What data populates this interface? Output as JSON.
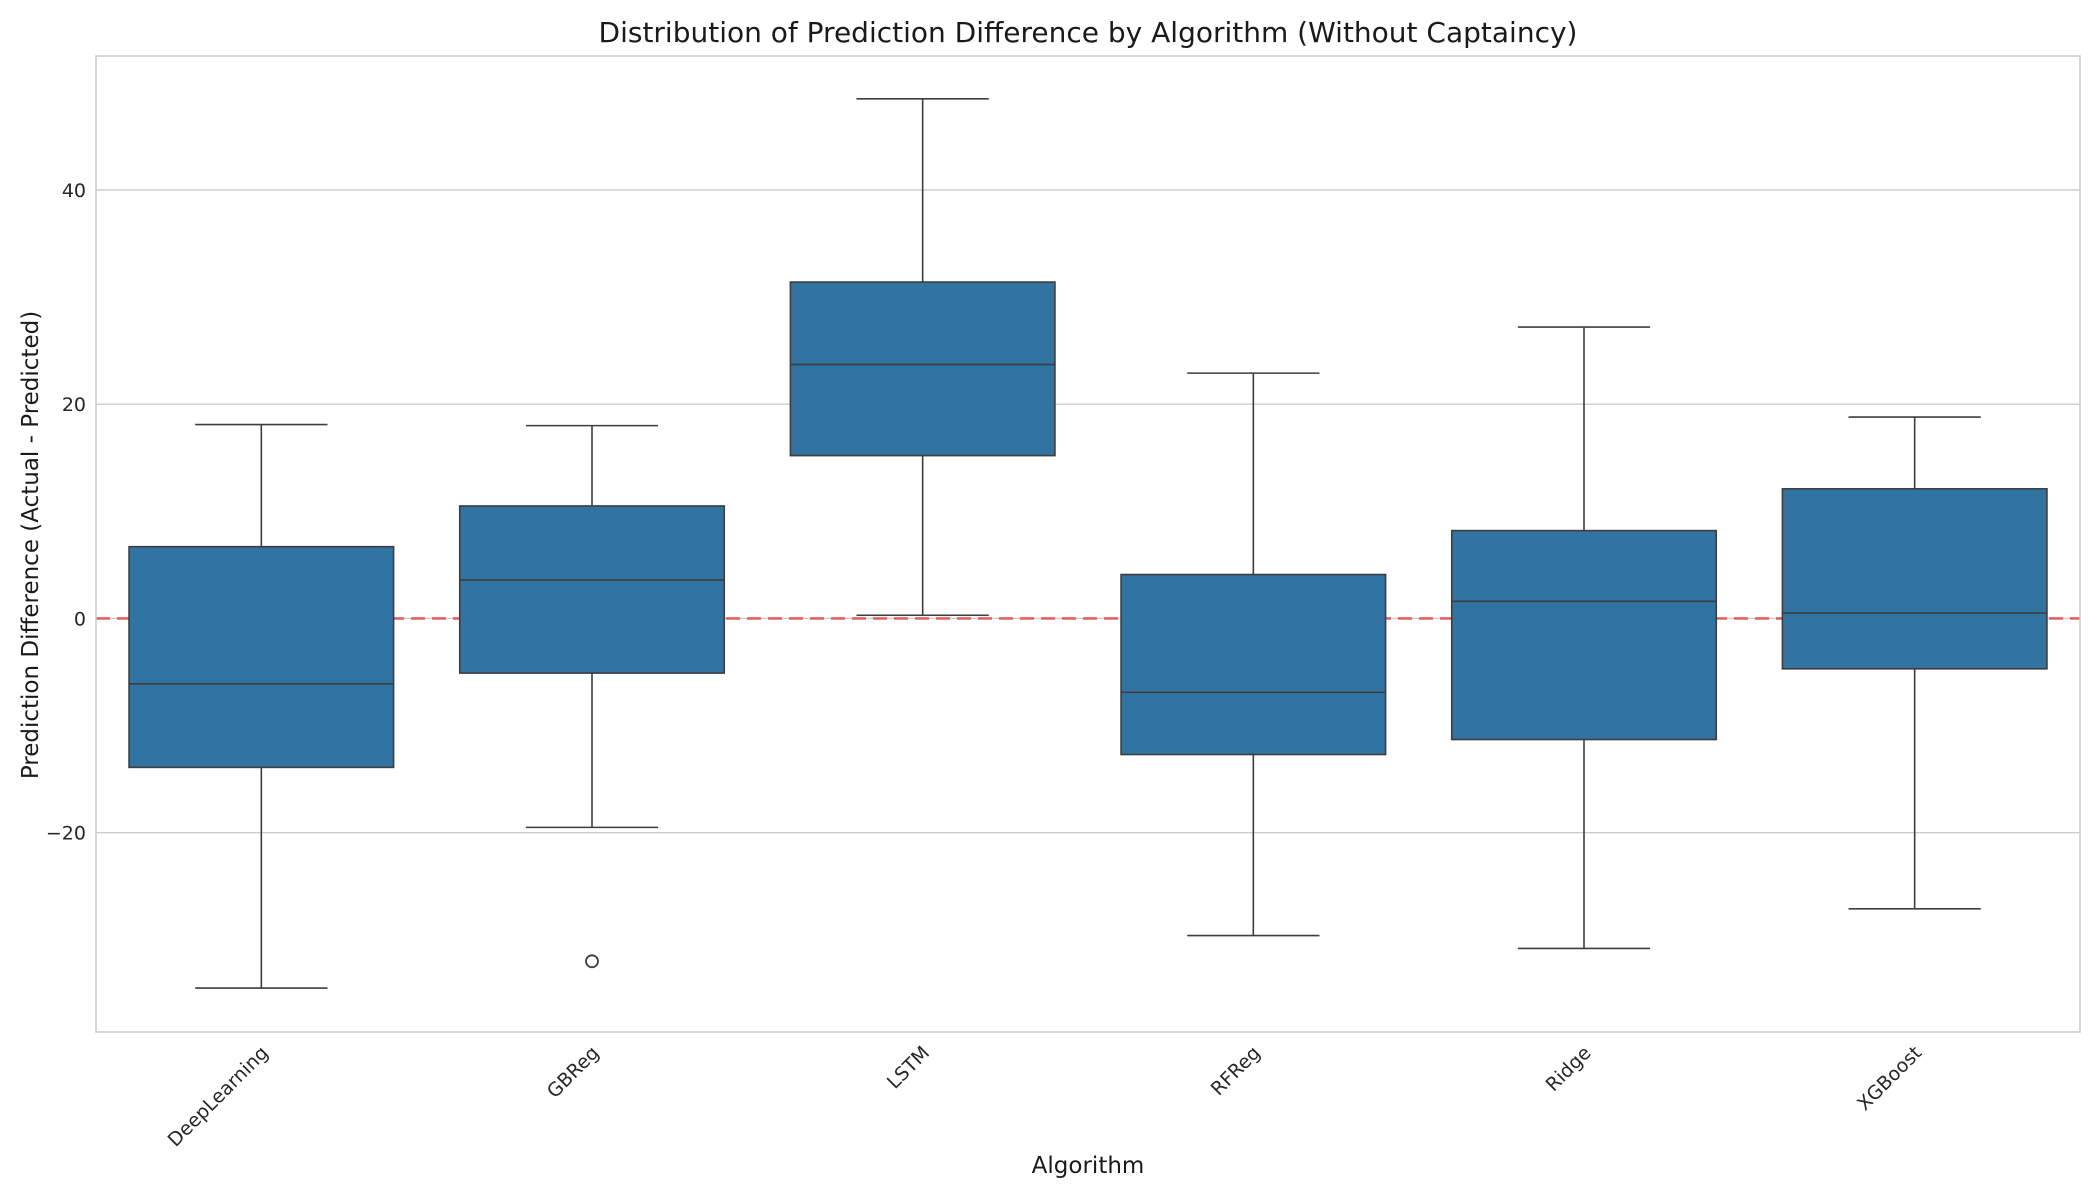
{
  "chart_data": {
    "type": "box",
    "title": "Distribution of Prediction Difference by Algorithm (Without Captaincy)",
    "xlabel": "Algorithm",
    "ylabel": "Prediction Difference (Actual - Predicted)",
    "ylim": [
      -38.6,
      52.5
    ],
    "yticks": [
      -20,
      0,
      20,
      40
    ],
    "grid": true,
    "categories": [
      "DeepLearning",
      "GBReg",
      "LSTM",
      "RFReg",
      "Ridge",
      "XGBoost"
    ],
    "boxes": [
      {
        "whisker_low": -34.5,
        "q1": -13.9,
        "median": -6.1,
        "q3": 6.7,
        "whisker_high": 18.1,
        "outliers": []
      },
      {
        "whisker_low": -19.5,
        "q1": -5.1,
        "median": 3.6,
        "q3": 10.5,
        "whisker_high": 18.0,
        "outliers": [
          -32.0
        ]
      },
      {
        "whisker_low": 0.3,
        "q1": 15.2,
        "median": 23.7,
        "q3": 31.4,
        "whisker_high": 48.5,
        "outliers": []
      },
      {
        "whisker_low": -29.6,
        "q1": -12.7,
        "median": -6.9,
        "q3": 4.1,
        "whisker_high": 22.9,
        "outliers": []
      },
      {
        "whisker_low": -30.8,
        "q1": -11.3,
        "median": 1.6,
        "q3": 8.2,
        "whisker_high": 27.2,
        "outliers": []
      },
      {
        "whisker_low": -27.1,
        "q1": -4.7,
        "median": 0.5,
        "q3": 12.1,
        "whisker_high": 18.8,
        "outliers": []
      }
    ],
    "reference_line": {
      "y": 0,
      "style": "dashed"
    },
    "colors": {
      "box_fill": "#3274a1",
      "box_edge": "#3d3d3d",
      "reference_line": "#e05555",
      "grid": "#cccccc",
      "axes_edge": "#cccccc",
      "text": "#1a1a1a",
      "tick_text": "#262626"
    }
  }
}
